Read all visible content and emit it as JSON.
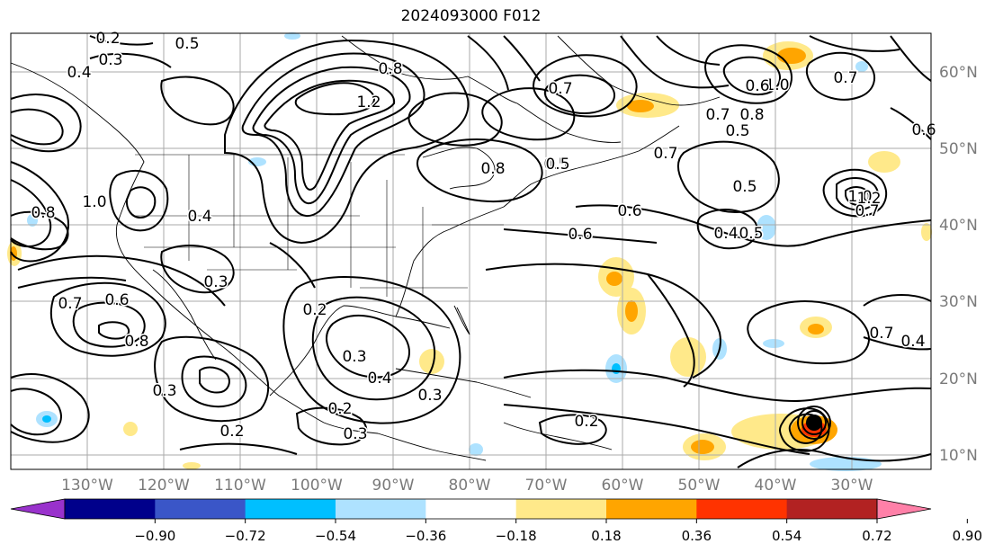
{
  "title": "2024093000 F012",
  "lat_labels": [
    "60°N",
    "50°N",
    "40°N",
    "30°N",
    "20°N",
    "10°N"
  ],
  "lon_labels": [
    "130°W",
    "120°W",
    "110°W",
    "100°W",
    "90°W",
    "80°W",
    "70°W",
    "60°W",
    "50°W",
    "40°W",
    "30°W"
  ],
  "colorbar": {
    "ticks": [
      "−0.90",
      "−0.72",
      "−0.54",
      "−0.36",
      "−0.18",
      "0.18",
      "0.36",
      "0.54",
      "0.72",
      "0.90"
    ],
    "colors": [
      "#9932cc",
      "#00008b",
      "#3a56c8",
      "#00bfff",
      "#aee2ff",
      "#ffffff",
      "#ffe98a",
      "#ffa500",
      "#ff3300",
      "#b22222",
      "#ff80a8"
    ]
  },
  "contour_labels": [
    "0.2",
    "0.5",
    "0.3",
    "0.4",
    "1.2",
    "0.8",
    "1.0",
    "0.6",
    "0.7",
    "0.5",
    "0.7",
    "0.8",
    "0.5",
    "0.6",
    "0.7",
    "0.5",
    "0.4",
    "0.6",
    "0.7",
    "1.0",
    "0.8",
    "0.3",
    "0.4",
    "0.3",
    "0.2",
    "0.2",
    "0.3",
    "0.3",
    "0.4",
    "0.2",
    "0.5",
    "0.2",
    "0.3",
    "0.5",
    "0.4",
    "0.7",
    "0.6",
    "0.7",
    "0.8",
    "1.0",
    "1.2",
    "0.8",
    "0.7",
    "0.6"
  ]
}
